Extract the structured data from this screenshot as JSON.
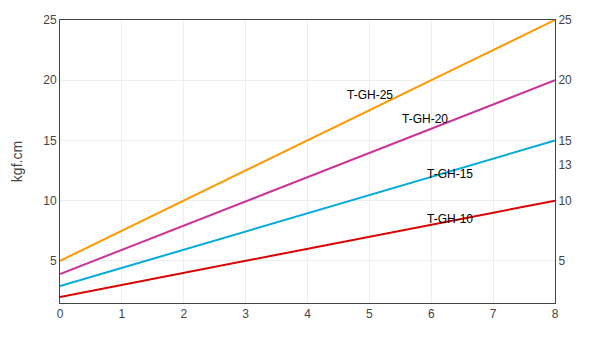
{
  "chart_data": {
    "type": "line",
    "y_label": "kgf.cm",
    "x": [
      0,
      8
    ],
    "series": [
      {
        "color": "#FF9900",
        "values": [
          5.0,
          25.0
        ]
      },
      {
        "color": "#CC3399",
        "values": [
          3.9,
          20.0
        ]
      },
      {
        "color": "#00AADD",
        "values": [
          2.9,
          15.0
        ]
      },
      {
        "color": "#DD0000",
        "values": [
          2.0,
          10.0
        ]
      }
    ],
    "annotations": [
      {
        "text": "T-GH-25",
        "x": 4.6,
        "y": 18.0
      },
      {
        "text": "T-GH-20",
        "x": 5.5,
        "y": 16.0
      },
      {
        "text": "T-GH-15",
        "x": 5.9,
        "y": 11.5
      },
      {
        "text": "T-GH-10",
        "x": 5.9,
        "y": 7.7
      }
    ],
    "xlim": [
      0,
      8
    ],
    "xticks": [
      0,
      1,
      2,
      3,
      4,
      5,
      6,
      7,
      8
    ],
    "ylim": [
      1.5,
      25
    ],
    "yticks": [
      5,
      10,
      15,
      20,
      25
    ],
    "y2lim": [
      1.5,
      25
    ],
    "y2ticks": [
      5,
      10,
      13,
      15,
      20,
      25
    ],
    "grid": true
  }
}
